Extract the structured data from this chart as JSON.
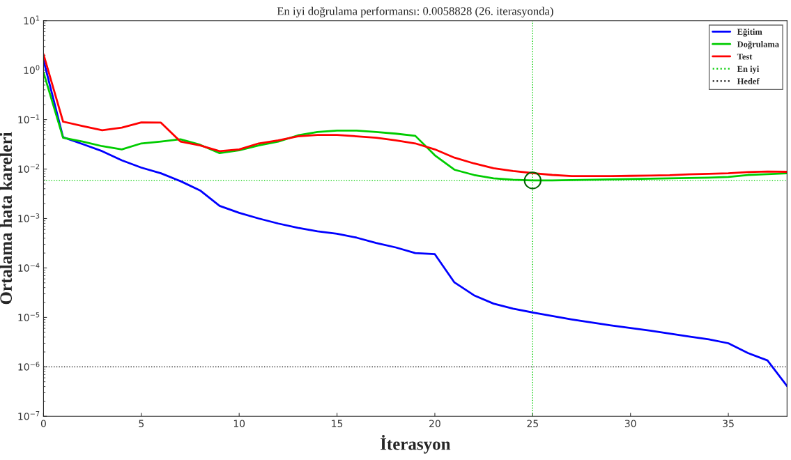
{
  "chart_data": {
    "type": "line",
    "title": "En iyi doğrulama performansı: 0.0058828 (26. iterasyonda)",
    "xlabel": "İterasyon",
    "ylabel": "Ortalama hata kareleri",
    "x": [
      0,
      1,
      2,
      3,
      4,
      5,
      6,
      7,
      8,
      9,
      10,
      11,
      12,
      13,
      14,
      15,
      16,
      17,
      18,
      19,
      20,
      21,
      22,
      23,
      24,
      25,
      26,
      27,
      28,
      29,
      30,
      31,
      32,
      33,
      34,
      35,
      36,
      37,
      38
    ],
    "series": [
      {
        "name": "Eğitim",
        "color": "#0000ff",
        "values": [
          1.6,
          0.044,
          0.032,
          0.023,
          0.015,
          0.0107,
          0.0082,
          0.0057,
          0.0037,
          0.0018,
          0.0013,
          0.001,
          0.00079,
          0.00065,
          0.00055,
          0.00049,
          0.00041,
          0.00032,
          0.00026,
          0.0002,
          0.00019,
          5.1e-05,
          2.8e-05,
          1.9e-05,
          1.5e-05,
          1.26e-05,
          1.07e-05,
          9.1e-06,
          7.9e-06,
          6.9e-06,
          6.1e-06,
          5.4e-06,
          4.7e-06,
          4.1e-06,
          3.6e-06,
          3e-06,
          1.9e-06,
          1.35e-06,
          4.1e-07
        ]
      },
      {
        "name": "Doğrulama",
        "color": "#00cc00",
        "values": [
          0.9,
          0.043,
          0.036,
          0.029,
          0.025,
          0.033,
          0.036,
          0.04,
          0.031,
          0.021,
          0.024,
          0.03,
          0.036,
          0.048,
          0.056,
          0.06,
          0.06,
          0.056,
          0.052,
          0.047,
          0.019,
          0.0097,
          0.0076,
          0.0065,
          0.0061,
          0.0058828,
          0.0059,
          0.006,
          0.0061,
          0.0062,
          0.0063,
          0.0064,
          0.0065,
          0.0066,
          0.0067,
          0.0069,
          0.0076,
          0.0079,
          0.0082
        ]
      },
      {
        "name": "Test",
        "color": "#ff0000",
        "values": [
          2.1,
          0.091,
          0.074,
          0.061,
          0.069,
          0.088,
          0.087,
          0.036,
          0.03,
          0.023,
          0.025,
          0.033,
          0.038,
          0.046,
          0.049,
          0.049,
          0.046,
          0.043,
          0.038,
          0.033,
          0.025,
          0.017,
          0.013,
          0.0104,
          0.0091,
          0.0083,
          0.0076,
          0.0072,
          0.0072,
          0.0072,
          0.0073,
          0.0074,
          0.0075,
          0.0078,
          0.008,
          0.0082,
          0.0087,
          0.0089,
          0.0088
        ]
      },
      {
        "type": "scatter",
        "marker": "circle",
        "color": "#006400",
        "x": [
          25
        ],
        "values": [
          0.0058828
        ]
      }
    ],
    "ref_lines": [
      {
        "axis": "x",
        "value": 25,
        "color": "#00cc00",
        "line_style": "dotted"
      },
      {
        "axis": "y",
        "value": 0.0058828,
        "label": "En iyi",
        "color": "#00cc00",
        "line_style": "dotted"
      },
      {
        "axis": "y",
        "value": 1e-06,
        "label": "Hedef",
        "color": "#000000",
        "line_style": "dotted"
      }
    ],
    "log": "y",
    "xlim": [
      0,
      38
    ],
    "xticks": [
      0,
      5,
      10,
      15,
      20,
      25,
      30,
      35
    ],
    "ylim": [
      1e-07,
      10
    ],
    "yticks": [
      {
        "value": 1e-07,
        "label": "10$^{−7}$"
      },
      {
        "value": 1e-06,
        "label": "10$^{−6}$"
      },
      {
        "value": 1e-05,
        "label": "10$^{−5}$"
      },
      {
        "value": 0.0001,
        "label": "10$^{−4}$"
      },
      {
        "value": 0.001,
        "label": "10$^{−3}$"
      },
      {
        "value": 0.01,
        "label": "10$^{−2}$"
      },
      {
        "value": 0.1,
        "label": "10$^{−1}$"
      },
      {
        "value": 1,
        "label": "10$^{0}$"
      },
      {
        "value": 10,
        "label": "10$^{1}$"
      }
    ],
    "grid": false,
    "legend": "top right",
    "line_style": "solid"
  }
}
